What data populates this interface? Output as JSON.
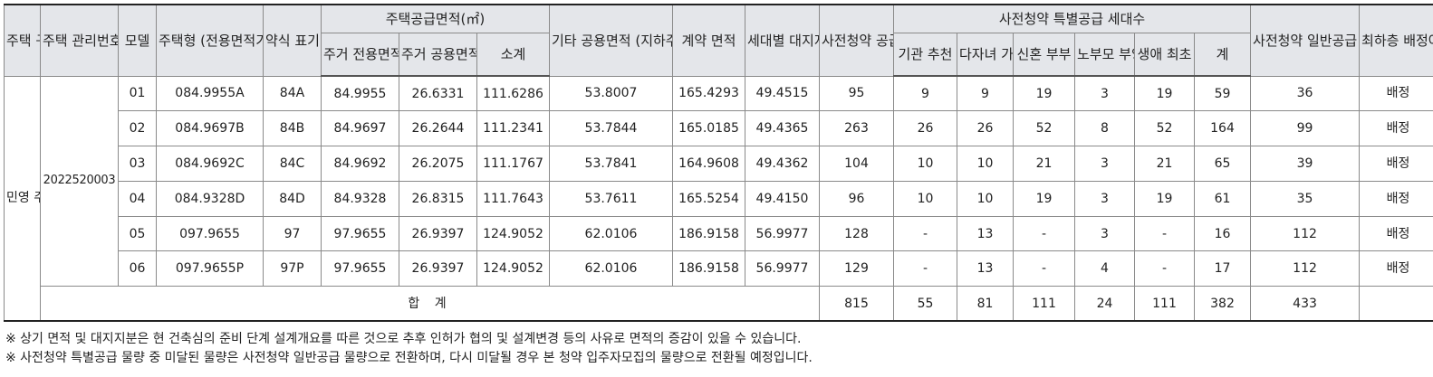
{
  "header": {
    "housing_type": "주택\n구분",
    "mgmt_no": "주택\n관리번호",
    "model": "모델",
    "housing_form": "주택형\n(전용면적기준)",
    "abbr": "약식\n표기",
    "supply_area": "주택공급면적(㎡)",
    "res_exclusive": "주거\n전용면적",
    "res_common": "주거\n공용면적",
    "subtotal": "소계",
    "other_common": "기타\n공용면적\n(지하주차장등)",
    "contract_area": "계약\n면적",
    "land_share": "세대별\n대지지분",
    "pre_supply": "사전청약\n공급\n세대수",
    "special": "사전청약 특별공급 세대수",
    "agency": "기관\n추천",
    "multi_child": "다자녀\n가구",
    "newlywed": "신혼\n부부",
    "elderly": "노부모\n부양",
    "first_time": "생애\n최초",
    "sum": "계",
    "general": "사전청약\n일반공급\n세대수",
    "lowest_floor": "최하층\n배정여부"
  },
  "group": {
    "housing_type": "민영\n주택",
    "mgmt_no": "2022520003"
  },
  "rows": [
    {
      "model": "01",
      "form": "084.9955A",
      "abbr": "84A",
      "excl": "84.9955",
      "common": "26.6331",
      "subtotal": "111.6286",
      "other": "53.8007",
      "contract": "165.4293",
      "land": "49.4515",
      "supply": "95",
      "agency": "9",
      "multi": "9",
      "newlywed": "19",
      "elderly": "3",
      "first": "19",
      "sum": "59",
      "general": "36",
      "lowest": "배정"
    },
    {
      "model": "02",
      "form": "084.9697B",
      "abbr": "84B",
      "excl": "84.9697",
      "common": "26.2644",
      "subtotal": "111.2341",
      "other": "53.7844",
      "contract": "165.0185",
      "land": "49.4365",
      "supply": "263",
      "agency": "26",
      "multi": "26",
      "newlywed": "52",
      "elderly": "8",
      "first": "52",
      "sum": "164",
      "general": "99",
      "lowest": "배정"
    },
    {
      "model": "03",
      "form": "084.9692C",
      "abbr": "84C",
      "excl": "84.9692",
      "common": "26.2075",
      "subtotal": "111.1767",
      "other": "53.7841",
      "contract": "164.9608",
      "land": "49.4362",
      "supply": "104",
      "agency": "10",
      "multi": "10",
      "newlywed": "21",
      "elderly": "3",
      "first": "21",
      "sum": "65",
      "general": "39",
      "lowest": "배정"
    },
    {
      "model": "04",
      "form": "084.9328D",
      "abbr": "84D",
      "excl": "84.9328",
      "common": "26.8315",
      "subtotal": "111.7643",
      "other": "53.7611",
      "contract": "165.5254",
      "land": "49.4150",
      "supply": "96",
      "agency": "10",
      "multi": "10",
      "newlywed": "19",
      "elderly": "3",
      "first": "19",
      "sum": "61",
      "general": "35",
      "lowest": "배정"
    },
    {
      "model": "05",
      "form": "097.9655",
      "abbr": "97",
      "excl": "97.9655",
      "common": "26.9397",
      "subtotal": "124.9052",
      "other": "62.0106",
      "contract": "186.9158",
      "land": "56.9977",
      "supply": "128",
      "agency": "-",
      "multi": "13",
      "newlywed": "-",
      "elderly": "3",
      "first": "-",
      "sum": "16",
      "general": "112",
      "lowest": "배정"
    },
    {
      "model": "06",
      "form": "097.9655P",
      "abbr": "97P",
      "excl": "97.9655",
      "common": "26.9397",
      "subtotal": "124.9052",
      "other": "62.0106",
      "contract": "186.9158",
      "land": "56.9977",
      "supply": "129",
      "agency": "-",
      "multi": "13",
      "newlywed": "-",
      "elderly": "4",
      "first": "-",
      "sum": "17",
      "general": "112",
      "lowest": "배정"
    }
  ],
  "total": {
    "label": "합 계",
    "supply": "815",
    "agency": "55",
    "multi": "81",
    "newlywed": "111",
    "elderly": "24",
    "first": "111",
    "sum": "382",
    "general": "433"
  },
  "notes": [
    "※ 상기 면적 및 대지지분은 현 건축심의 준비 단계 설계개요를 따른 것으로 추후 인허가 협의 및 설계변경 등의 사유로 면적의 증감이 있을 수 있습니다.",
    "※ 사전청약 특별공급 물량 중 미달된 물량은 사전청약 일반공급 물량으로 전환하며, 다시 미달될 경우 본 청약 입주자모집의 물량으로 전환될 예정입니다."
  ]
}
